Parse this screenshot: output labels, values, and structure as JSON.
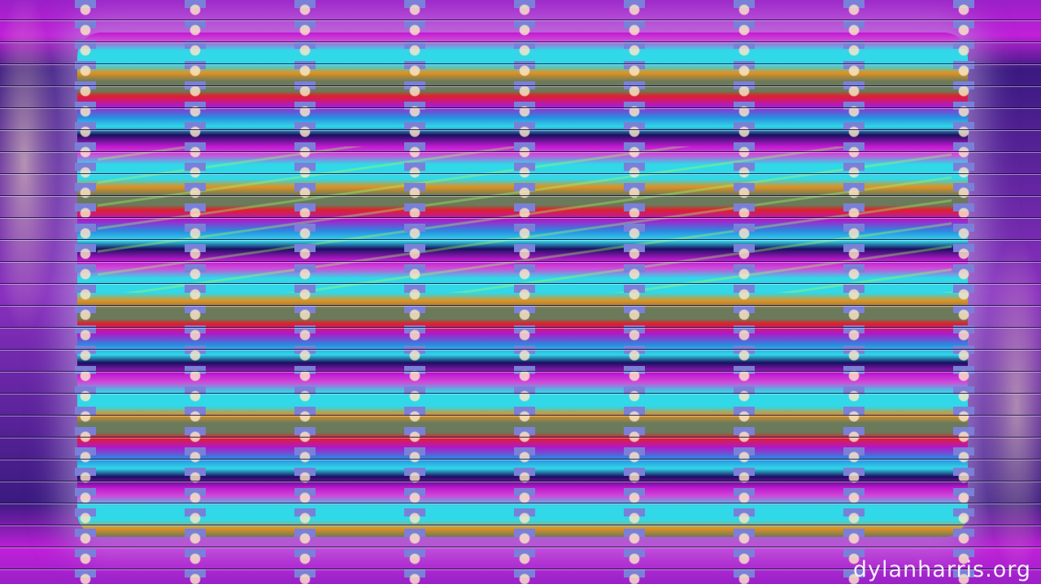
{
  "watermark": {
    "text": "dylanharris.org"
  },
  "colors": {
    "magenta": "#c018d0",
    "cyan": "#30d8e8",
    "orange": "#e09020",
    "olive": "#6a7a5a",
    "periwinkle": "#7a80d8",
    "navy": "#1a1060"
  }
}
